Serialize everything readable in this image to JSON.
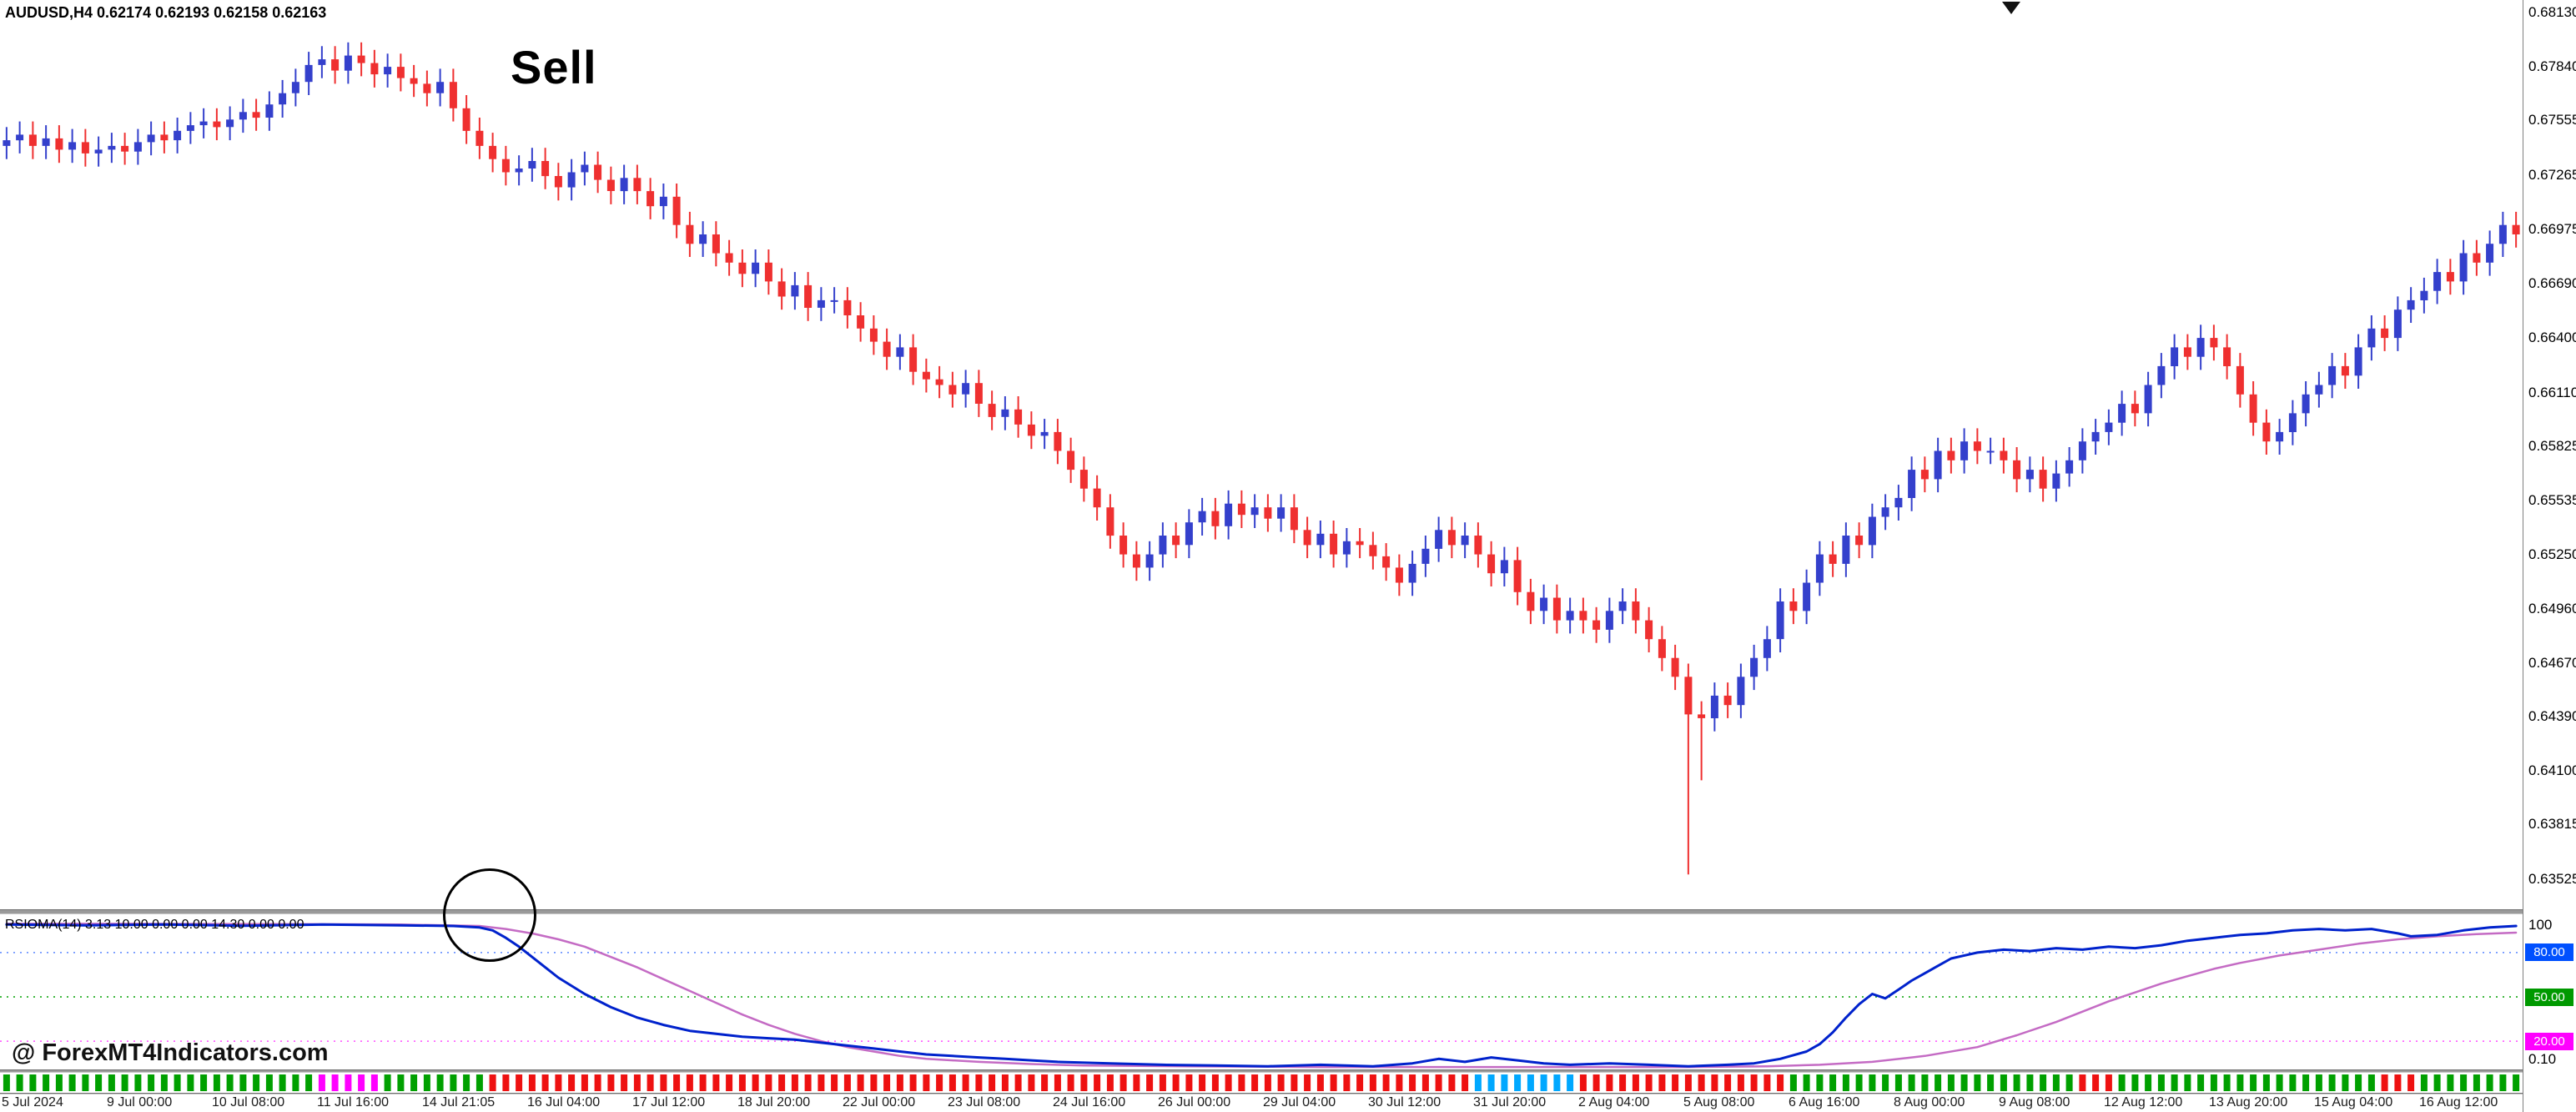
{
  "window": {
    "symbol_line": "AUDUSD,H4  0.62174 0.62193 0.62158 0.62163"
  },
  "annotations": {
    "sell_label": "Sell",
    "watermark": "@ ForexMT4Indicators.com"
  },
  "price_axis": {
    "p_max": 0.68195,
    "p_min": 0.63365,
    "labels": [
      "0.68130",
      "0.67840",
      "0.67555",
      "0.67265",
      "0.66975",
      "0.66690",
      "0.66400",
      "0.66110",
      "0.65825",
      "0.65535",
      "0.65250",
      "0.64960",
      "0.64670",
      "0.64390",
      "0.64100",
      "0.63815",
      "0.63525"
    ]
  },
  "time_axis": {
    "candles_per_label": 8,
    "labels": [
      "5 Jul 2024",
      "9 Jul 00:00",
      "10 Jul 08:00",
      "11 Jul 16:00",
      "14 Jul 21:05",
      "16 Jul 04:00",
      "17 Jul 12:00",
      "18 Jul 20:00",
      "22 Jul 00:00",
      "23 Jul 08:00",
      "24 Jul 16:00",
      "26 Jul 00:00",
      "29 Jul 04:00",
      "30 Jul 12:00",
      "31 Jul 20:00",
      "2 Aug 04:00",
      "5 Aug 08:00",
      "6 Aug 16:00",
      "8 Aug 00:00",
      "9 Aug 08:00",
      "12 Aug 12:00",
      "13 Aug 20:00",
      "15 Aug 04:00",
      "16 Aug 12:00"
    ]
  },
  "indicator": {
    "header": "RSIOMA(14) 3.13 10.00 0.00 0.00 14.30 0.00 0.00",
    "scale_top": "100",
    "scale_bottom": "0.10",
    "ylim": [
      0,
      100
    ],
    "levels": [
      {
        "value": 80,
        "label": "80.00",
        "color": "#0050ff",
        "line_color": "#5a86ff"
      },
      {
        "value": 50,
        "label": "50.00",
        "color": "#009900",
        "line_color": "#00a000"
      },
      {
        "value": 20,
        "label": "20.00",
        "color": "#ff00ff",
        "line_color": "#ff4dff"
      }
    ]
  },
  "chart_data": [
    {
      "type": "candlestick",
      "title": "AUDUSD H4",
      "up_color": "#3440cc",
      "down_color": "#ef3030",
      "first_open": 0.6742,
      "default_wick": 0.0007,
      "overrides": {
        "24": {
          "high": 0.6795
        },
        "128": {
          "low": 0.6355
        },
        "129": {
          "low": 0.6405
        }
      },
      "closes": [
        0.6745,
        0.6748,
        0.6742,
        0.6746,
        0.674,
        0.6744,
        0.6738,
        0.674,
        0.6742,
        0.6739,
        0.6744,
        0.6748,
        0.6745,
        0.675,
        0.6753,
        0.6755,
        0.6752,
        0.6756,
        0.676,
        0.6757,
        0.6764,
        0.677,
        0.6776,
        0.6785,
        0.6788,
        0.6782,
        0.679,
        0.6786,
        0.678,
        0.6784,
        0.6778,
        0.6775,
        0.677,
        0.6776,
        0.6762,
        0.675,
        0.6742,
        0.6735,
        0.6728,
        0.673,
        0.6734,
        0.6726,
        0.672,
        0.6728,
        0.6732,
        0.6724,
        0.6718,
        0.6725,
        0.6718,
        0.671,
        0.6715,
        0.67,
        0.669,
        0.6695,
        0.6685,
        0.668,
        0.6674,
        0.668,
        0.667,
        0.6662,
        0.6668,
        0.6656,
        0.666,
        0.666,
        0.6652,
        0.6645,
        0.6638,
        0.663,
        0.6635,
        0.6622,
        0.6618,
        0.6615,
        0.661,
        0.6616,
        0.6605,
        0.6598,
        0.6602,
        0.6594,
        0.6588,
        0.659,
        0.658,
        0.657,
        0.656,
        0.655,
        0.6535,
        0.6525,
        0.6518,
        0.6525,
        0.6535,
        0.653,
        0.6542,
        0.6548,
        0.654,
        0.6552,
        0.6546,
        0.655,
        0.6544,
        0.655,
        0.6538,
        0.653,
        0.6536,
        0.6525,
        0.6532,
        0.653,
        0.6524,
        0.6518,
        0.651,
        0.652,
        0.6528,
        0.6538,
        0.653,
        0.6535,
        0.6525,
        0.6515,
        0.6522,
        0.6505,
        0.6495,
        0.6502,
        0.649,
        0.6495,
        0.649,
        0.6485,
        0.6495,
        0.65,
        0.649,
        0.648,
        0.647,
        0.646,
        0.644,
        0.6438,
        0.645,
        0.6445,
        0.646,
        0.647,
        0.648,
        0.65,
        0.6495,
        0.651,
        0.6525,
        0.652,
        0.6535,
        0.653,
        0.6545,
        0.655,
        0.6555,
        0.657,
        0.6565,
        0.658,
        0.6575,
        0.6585,
        0.658,
        0.658,
        0.6575,
        0.6565,
        0.657,
        0.656,
        0.6568,
        0.6575,
        0.6585,
        0.659,
        0.6595,
        0.6605,
        0.66,
        0.6615,
        0.6625,
        0.6635,
        0.663,
        0.664,
        0.6635,
        0.6625,
        0.661,
        0.6595,
        0.6585,
        0.659,
        0.66,
        0.661,
        0.6615,
        0.6625,
        0.662,
        0.6635,
        0.6645,
        0.664,
        0.6655,
        0.666,
        0.6665,
        0.6675,
        0.667,
        0.6685,
        0.668,
        0.669,
        0.67,
        0.6695
      ]
    },
    {
      "type": "line",
      "name": "RSIOMA(14)",
      "color": "#0022cc",
      "ylim": [
        0,
        100
      ],
      "points": [
        [
          0,
          99
        ],
        [
          6,
          98.5
        ],
        [
          12,
          99
        ],
        [
          18,
          98.2
        ],
        [
          24,
          99
        ],
        [
          30,
          98.5
        ],
        [
          34,
          98
        ],
        [
          36,
          97
        ],
        [
          37,
          95
        ],
        [
          38,
          90
        ],
        [
          39,
          84
        ],
        [
          40,
          77
        ],
        [
          41,
          70
        ],
        [
          42,
          63
        ],
        [
          44,
          52
        ],
        [
          46,
          43
        ],
        [
          48,
          36
        ],
        [
          50,
          31
        ],
        [
          52,
          27
        ],
        [
          54,
          25
        ],
        [
          56,
          23
        ],
        [
          58,
          22
        ],
        [
          60,
          21
        ],
        [
          62,
          19
        ],
        [
          64,
          17
        ],
        [
          66,
          15
        ],
        [
          68,
          13
        ],
        [
          70,
          11
        ],
        [
          72,
          10
        ],
        [
          74,
          9
        ],
        [
          76,
          8
        ],
        [
          78,
          7
        ],
        [
          80,
          6
        ],
        [
          84,
          5
        ],
        [
          88,
          4
        ],
        [
          92,
          3.5
        ],
        [
          96,
          3
        ],
        [
          100,
          4
        ],
        [
          104,
          3
        ],
        [
          107,
          5
        ],
        [
          109,
          8
        ],
        [
          111,
          6
        ],
        [
          113,
          9
        ],
        [
          115,
          7
        ],
        [
          117,
          5
        ],
        [
          119,
          4
        ],
        [
          122,
          5
        ],
        [
          125,
          4
        ],
        [
          128,
          3
        ],
        [
          131,
          4
        ],
        [
          133,
          5
        ],
        [
          135,
          8
        ],
        [
          137,
          13
        ],
        [
          138,
          18
        ],
        [
          139,
          26
        ],
        [
          140,
          36
        ],
        [
          141,
          45
        ],
        [
          142,
          52
        ],
        [
          143,
          49
        ],
        [
          144,
          55
        ],
        [
          145,
          61
        ],
        [
          146,
          66
        ],
        [
          147,
          71
        ],
        [
          148,
          76
        ],
        [
          149,
          78
        ],
        [
          150,
          80
        ],
        [
          151,
          81
        ],
        [
          152,
          82
        ],
        [
          154,
          81
        ],
        [
          156,
          83
        ],
        [
          158,
          82
        ],
        [
          160,
          84
        ],
        [
          162,
          83
        ],
        [
          164,
          85
        ],
        [
          166,
          88
        ],
        [
          168,
          90
        ],
        [
          170,
          92
        ],
        [
          172,
          93
        ],
        [
          174,
          95
        ],
        [
          176,
          96
        ],
        [
          178,
          95
        ],
        [
          180,
          96
        ],
        [
          182,
          93
        ],
        [
          183,
          91
        ],
        [
          185,
          92
        ],
        [
          187,
          95
        ],
        [
          189,
          97
        ],
        [
          191,
          98
        ]
      ]
    },
    {
      "type": "line",
      "name": "RSIOMA MA",
      "color": "#c46bc4",
      "ylim": [
        0,
        100
      ],
      "points": [
        [
          0,
          99.5
        ],
        [
          10,
          99.5
        ],
        [
          20,
          99.3
        ],
        [
          30,
          99
        ],
        [
          36,
          98
        ],
        [
          38,
          96
        ],
        [
          40,
          93
        ],
        [
          42,
          89
        ],
        [
          44,
          84
        ],
        [
          46,
          77
        ],
        [
          48,
          70
        ],
        [
          50,
          62
        ],
        [
          52,
          54
        ],
        [
          54,
          46
        ],
        [
          56,
          38
        ],
        [
          58,
          31
        ],
        [
          60,
          25
        ],
        [
          62,
          20
        ],
        [
          64,
          16
        ],
        [
          66,
          13
        ],
        [
          68,
          10
        ],
        [
          70,
          8
        ],
        [
          74,
          6
        ],
        [
          78,
          4.5
        ],
        [
          82,
          3.5
        ],
        [
          90,
          3
        ],
        [
          100,
          2.5
        ],
        [
          110,
          2.5
        ],
        [
          120,
          2.5
        ],
        [
          128,
          2.5
        ],
        [
          134,
          3
        ],
        [
          138,
          4
        ],
        [
          142,
          6
        ],
        [
          146,
          10
        ],
        [
          150,
          16
        ],
        [
          153,
          24
        ],
        [
          156,
          33
        ],
        [
          158,
          40
        ],
        [
          160,
          47
        ],
        [
          162,
          53
        ],
        [
          164,
          59
        ],
        [
          166,
          64
        ],
        [
          168,
          69
        ],
        [
          170,
          73
        ],
        [
          173,
          78
        ],
        [
          176,
          82
        ],
        [
          179,
          86
        ],
        [
          182,
          89
        ],
        [
          185,
          91
        ],
        [
          188,
          92.5
        ],
        [
          191,
          93.5
        ]
      ]
    },
    {
      "type": "bar",
      "name": "trend-bars",
      "colors": {
        "g": "#00a000",
        "r": "#ee1111",
        "b": "#00a8ff",
        "m": "#ff00ff"
      },
      "sequence": "ggggggggggggggggggggggggmmmmmggggggggrrrrrrrrrrrrrrrrrrrrrrrrrrrrrrrrrrrrrrrrrrrrrrrrrrrrrrrrrrrrrrrrrrrrrrrrrrrbbbbbbbbrrrrrrrrrrrrrrrrggggggggggggggggggggggrrrggggggggggggggggggggrrrgggggggg"
    }
  ]
}
